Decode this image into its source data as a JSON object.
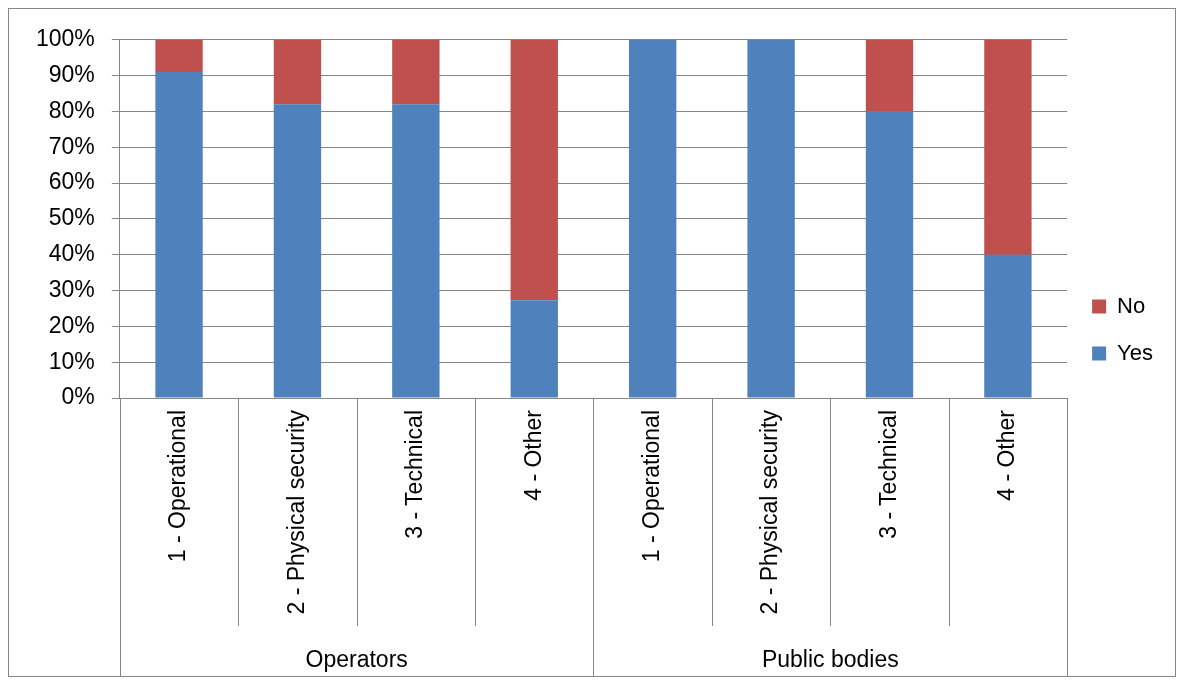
{
  "chart_data": {
    "type": "bar",
    "stacked": true,
    "categories": [
      "1 - Operational",
      "2 - Physical security",
      "3 - Technical",
      "4 - Other",
      "1 - Operational",
      "2 - Physical security",
      "3 - Technical",
      "4 - Other"
    ],
    "series": [
      {
        "name": "Yes",
        "color": "#4f81bd",
        "values": [
          91,
          82,
          82,
          27.3,
          100,
          100,
          80,
          40
        ]
      },
      {
        "name": "No",
        "color": "#c0504d",
        "values": [
          9,
          18,
          18,
          72.7,
          0,
          0,
          20,
          60
        ]
      }
    ],
    "ylim": [
      0,
      100
    ],
    "yticks": [
      {
        "value": 0,
        "label": "0%"
      },
      {
        "value": 10,
        "label": "10%"
      },
      {
        "value": 20,
        "label": "20%"
      },
      {
        "value": 30,
        "label": "30%"
      },
      {
        "value": 40,
        "label": "40%"
      },
      {
        "value": 50,
        "label": "50%"
      },
      {
        "value": 60,
        "label": "60%"
      },
      {
        "value": 70,
        "label": "70%"
      },
      {
        "value": 80,
        "label": "80%"
      },
      {
        "value": 90,
        "label": "90%"
      },
      {
        "value": 100,
        "label": "100%"
      }
    ],
    "grid": "y",
    "legend": "right",
    "annotations": [
      "Operators",
      "Public bodies"
    ]
  }
}
